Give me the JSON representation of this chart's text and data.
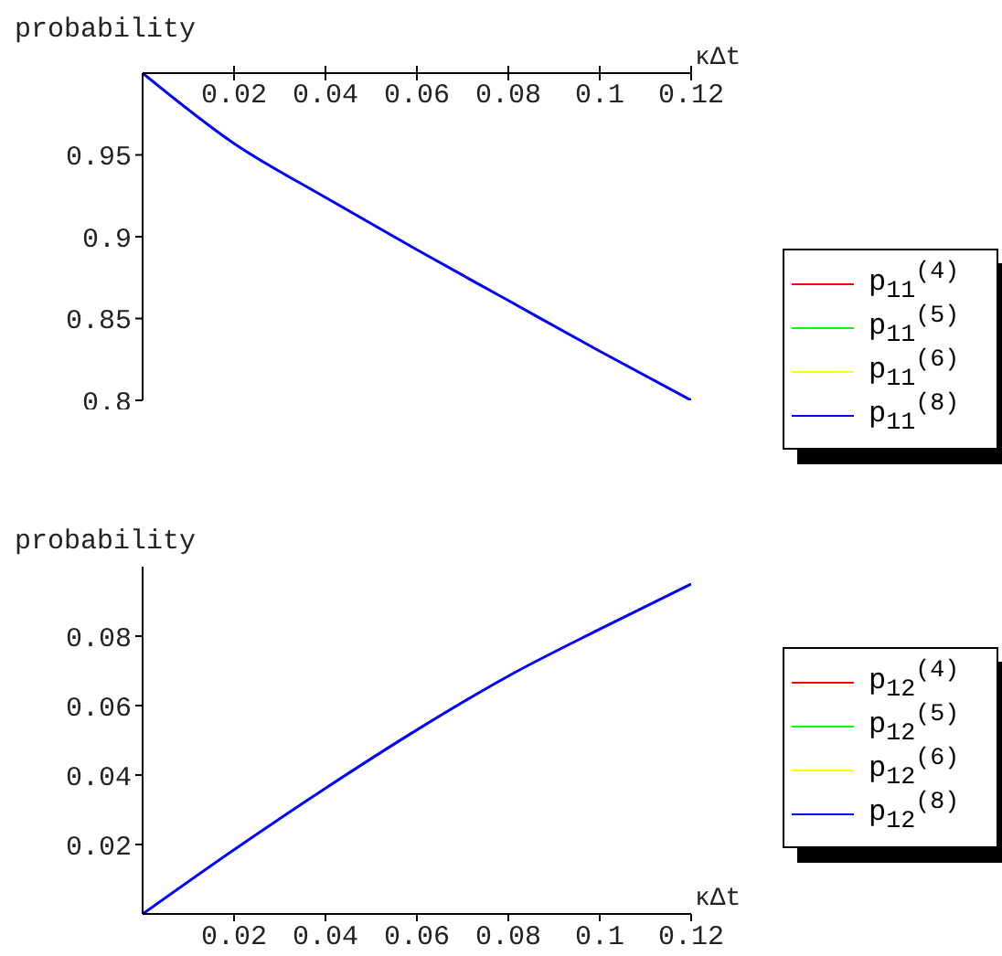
{
  "chart_data": [
    {
      "type": "line",
      "ylabel": "probability",
      "xlabel": "κΔt",
      "x": [
        0,
        0.02,
        0.04,
        0.06,
        0.08,
        0.1,
        0.12
      ],
      "xlim": [
        0,
        0.12
      ],
      "xticks": [
        0.02,
        0.04,
        0.06,
        0.08,
        0.1,
        0.12
      ],
      "ylim": [
        0.8,
        1
      ],
      "yticks": [
        0.8,
        0.85,
        0.9,
        0.95
      ],
      "legend": "right",
      "series": [
        {
          "name": "p$_{11}$$^{(4)}$",
          "color": "#ff0000",
          "values": [
            null,
            null,
            null,
            null,
            null,
            null,
            null
          ]
        },
        {
          "name": "p$_{11}$$^{(5)}$",
          "color": "#00ff00",
          "values": [
            null,
            null,
            null,
            null,
            null,
            null,
            null
          ]
        },
        {
          "name": "p$_{11}$$^{(6)}$",
          "color": "#ffff00",
          "values": [
            null,
            null,
            null,
            null,
            null,
            null,
            null
          ]
        },
        {
          "name": "p$_{11}$$^{(8)}$",
          "color": "#0000ff",
          "values": [
            1,
            0.957,
            0.924,
            0.892,
            0.861,
            0.83,
            0.8
          ]
        }
      ]
    },
    {
      "type": "line",
      "ylabel": "probability",
      "xlabel": "κΔt",
      "x": [
        0,
        0.02,
        0.04,
        0.06,
        0.08,
        0.1,
        0.12
      ],
      "xlim": [
        0,
        0.12
      ],
      "xticks": [
        0.02,
        0.04,
        0.06,
        0.08,
        0.1,
        0.12
      ],
      "ylim": [
        0,
        0.1
      ],
      "yticks": [
        0.02,
        0.04,
        0.06,
        0.08
      ],
      "legend": "right",
      "series": [
        {
          "name": "p$_{12}$$^{(4)}$",
          "color": "#ff0000",
          "values": [
            null,
            null,
            null,
            null,
            null,
            null,
            null
          ]
        },
        {
          "name": "p$_{12}$$^{(5)}$",
          "color": "#00ff00",
          "values": [
            null,
            null,
            null,
            null,
            null,
            null,
            null
          ]
        },
        {
          "name": "p$_{12}$$^{(6)}$",
          "color": "#ffff00",
          "values": [
            null,
            null,
            null,
            null,
            null,
            null,
            null
          ]
        },
        {
          "name": "p$_{12}$$^{(8)}$",
          "color": "#0000ff",
          "values": [
            0,
            0.0185,
            0.0362,
            0.053,
            0.0685,
            0.082,
            0.095
          ]
        }
      ]
    }
  ]
}
